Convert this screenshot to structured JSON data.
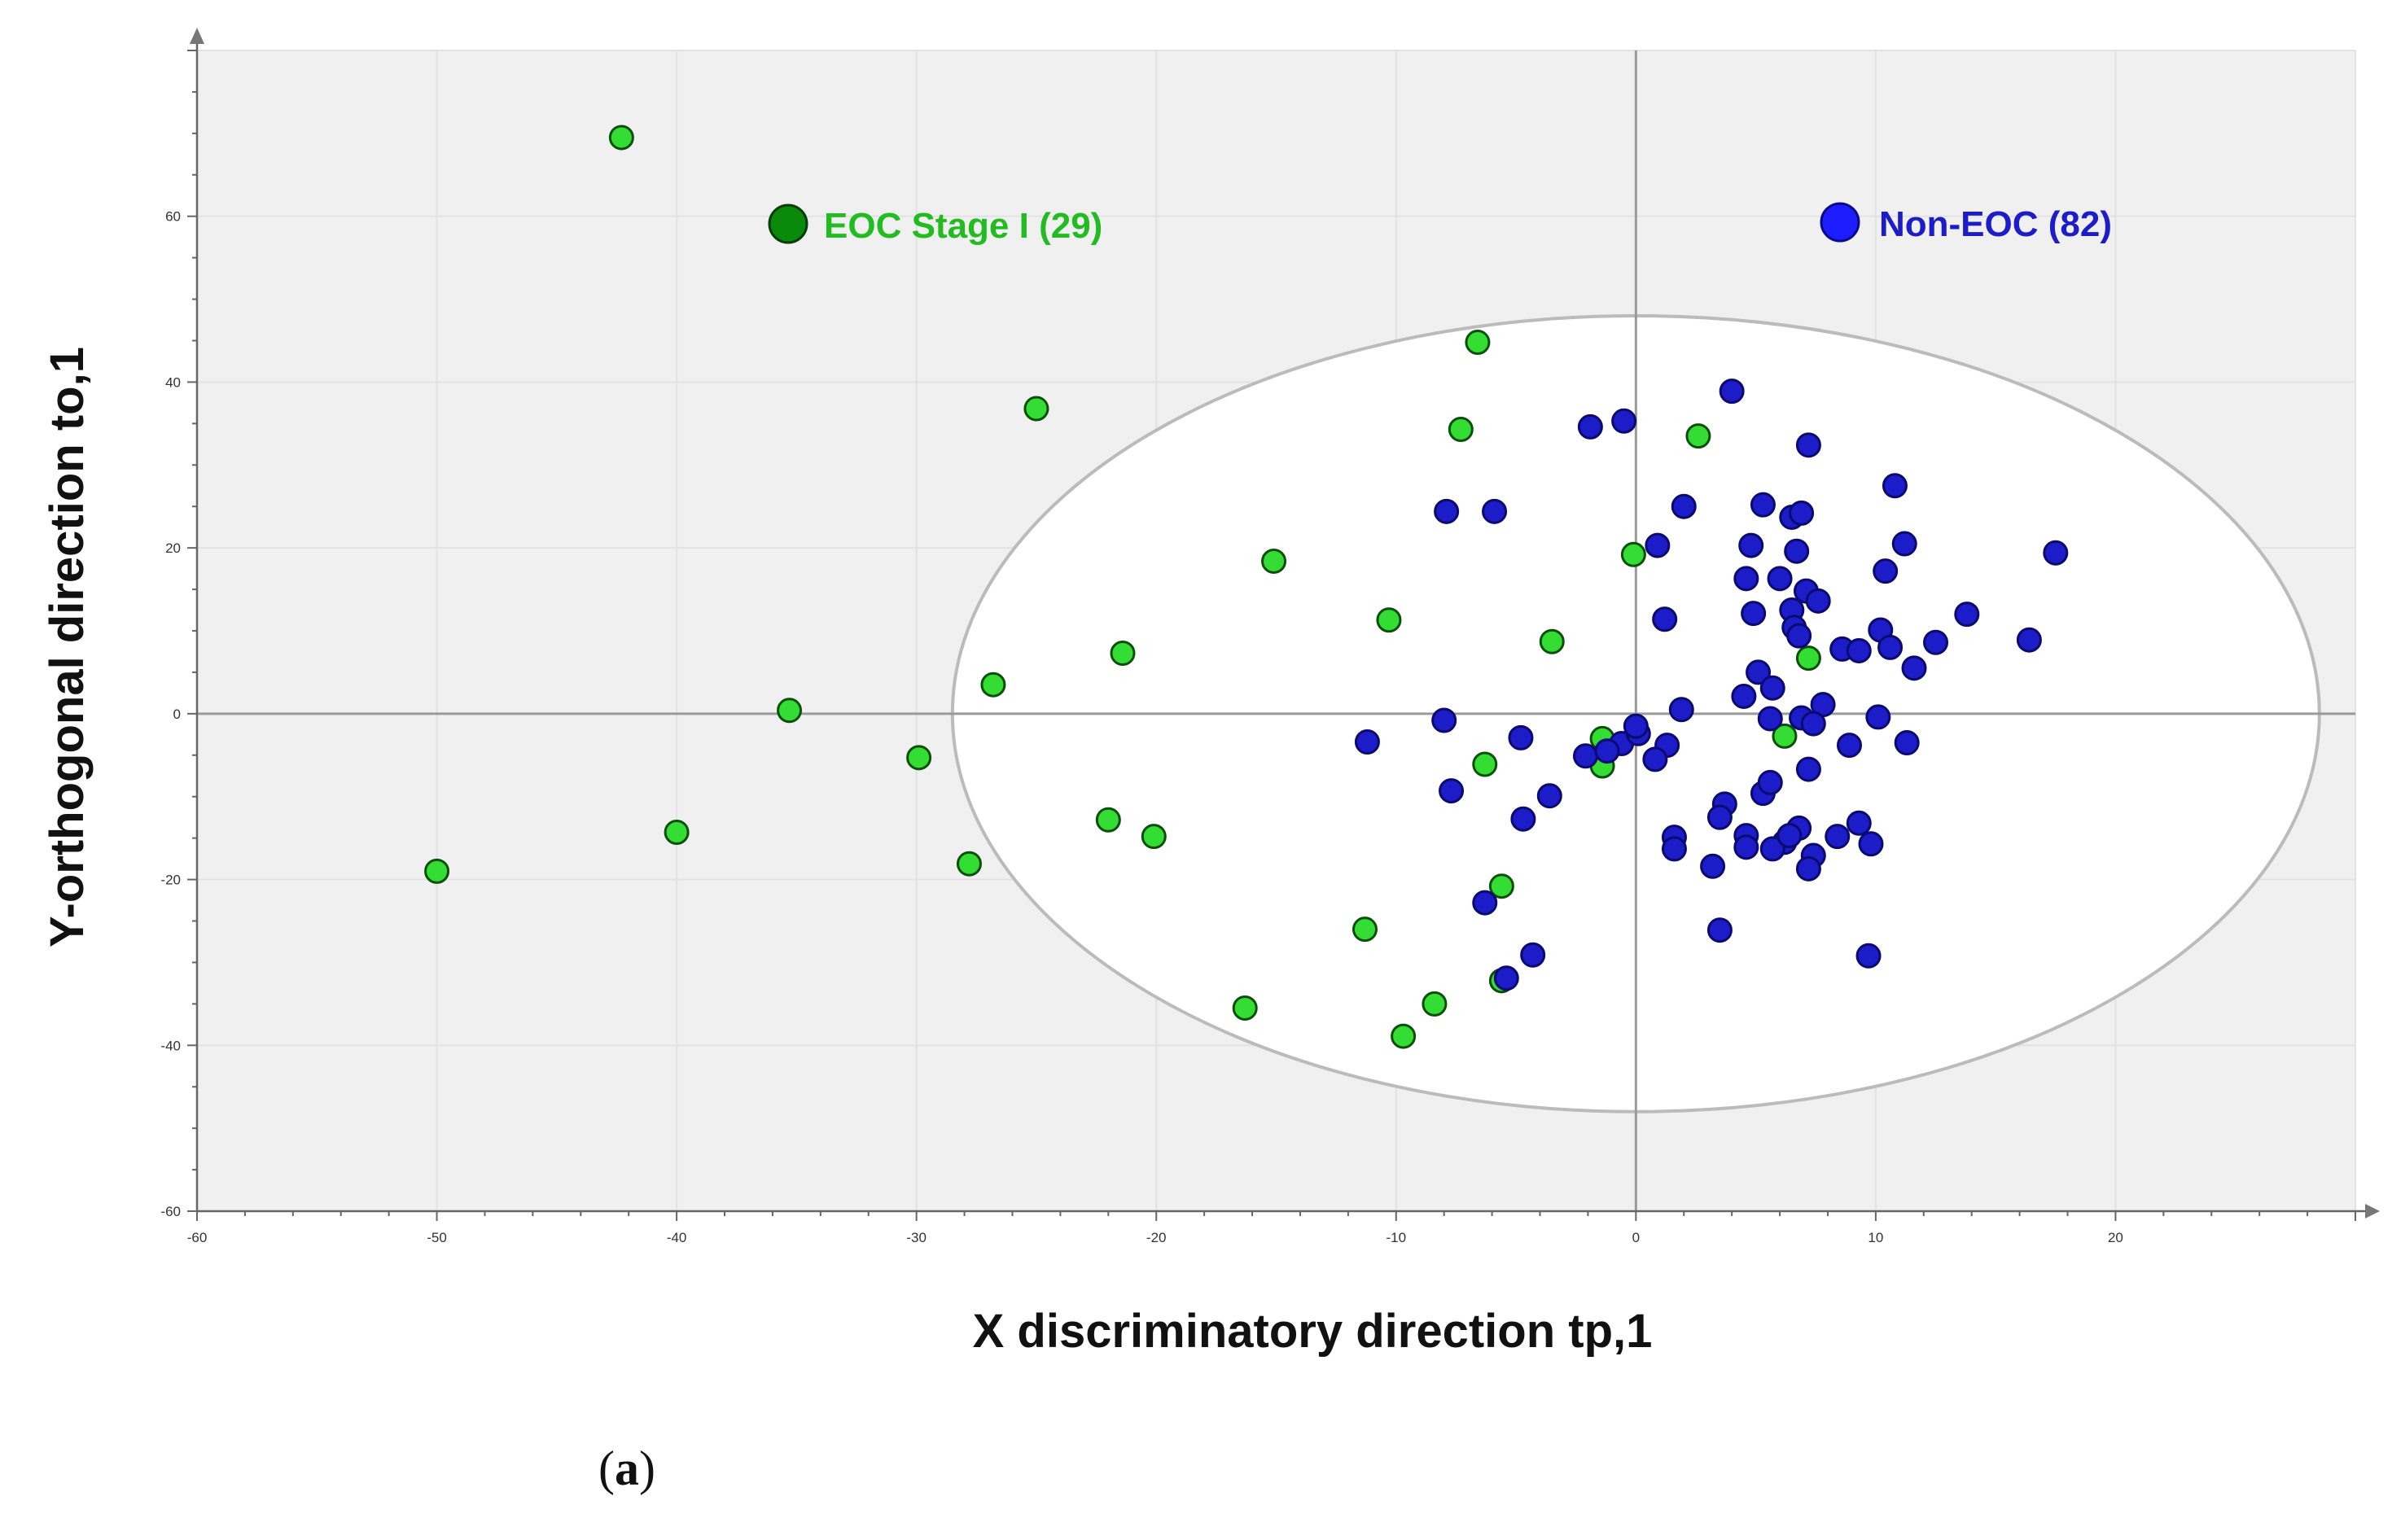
{
  "chart_data": {
    "type": "scatter",
    "title": "",
    "xlabel": "X discriminatory  direction tp,1",
    "ylabel": "Y-orthogonal direction to,1",
    "xlim": [
      -60,
      30
    ],
    "ylim": [
      -60,
      80
    ],
    "x_ticks": [
      -60,
      -50,
      -40,
      -30,
      -20,
      -10,
      0,
      10,
      20
    ],
    "y_ticks": [
      -60,
      -40,
      -20,
      0,
      20,
      40,
      60
    ],
    "grid": true,
    "legend_position": "top",
    "ellipse": {
      "center": [
        0,
        0
      ],
      "x_radius": 28.5,
      "y_radius": 48
    },
    "series": [
      {
        "name": "EOC  Stage I (29)",
        "color": "#33dd33",
        "legend_color": "#0a8a0a",
        "points": [
          [
            -42.3,
            69.5
          ],
          [
            -25,
            36.8
          ],
          [
            -6.6,
            44.8
          ],
          [
            -7.3,
            34.3
          ],
          [
            2.6,
            33.5
          ],
          [
            -15.1,
            18.4
          ],
          [
            -10.3,
            11.3
          ],
          [
            -21.4,
            7.3
          ],
          [
            -3.5,
            8.7
          ],
          [
            -0.1,
            19.2
          ],
          [
            -35.3,
            0.4
          ],
          [
            -26.8,
            3.5
          ],
          [
            -29.9,
            -5.3
          ],
          [
            -40,
            -14.3
          ],
          [
            -50,
            -19
          ],
          [
            -27.8,
            -18.1
          ],
          [
            -22,
            -12.8
          ],
          [
            -20.1,
            -14.8
          ],
          [
            -6.3,
            -6.1
          ],
          [
            -1.4,
            -3
          ],
          [
            -1.4,
            -6.3
          ],
          [
            7.2,
            6.7
          ],
          [
            6.2,
            -2.7
          ],
          [
            -5.6,
            -20.8
          ],
          [
            -11.3,
            -26
          ],
          [
            -5.6,
            -32.2
          ],
          [
            -16.3,
            -35.5
          ],
          [
            -8.4,
            -35
          ],
          [
            -9.7,
            -38.9
          ]
        ]
      },
      {
        "name": "Non-EOC  (82)",
        "color": "#1c1cc8",
        "legend_color": "#1c1cff",
        "points": [
          [
            4.0,
            38.9
          ],
          [
            -0.5,
            35.3
          ],
          [
            -1.9,
            34.6
          ],
          [
            7.2,
            32.4
          ],
          [
            10.8,
            27.5
          ],
          [
            2.0,
            25
          ],
          [
            5.3,
            25.2
          ],
          [
            6.5,
            23.7
          ],
          [
            6.9,
            24.2
          ],
          [
            -7.9,
            24.4
          ],
          [
            -5.9,
            24.4
          ],
          [
            0.9,
            20.3
          ],
          [
            4.8,
            20.3
          ],
          [
            6.7,
            19.6
          ],
          [
            11.2,
            20.5
          ],
          [
            17.5,
            19.4
          ],
          [
            4.6,
            16.3
          ],
          [
            6.0,
            16.3
          ],
          [
            7.1,
            14.8
          ],
          [
            7.6,
            13.6
          ],
          [
            10.4,
            17.2
          ],
          [
            6.5,
            12.5
          ],
          [
            4.9,
            12.1
          ],
          [
            1.2,
            11.4
          ],
          [
            6.6,
            10.4
          ],
          [
            6.8,
            9.4
          ],
          [
            8.6,
            7.8
          ],
          [
            9.3,
            7.6
          ],
          [
            10.2,
            10.1
          ],
          [
            10.6,
            8.0
          ],
          [
            12.5,
            8.6
          ],
          [
            13.8,
            12.0
          ],
          [
            16.4,
            8.9
          ],
          [
            11.6,
            5.5
          ],
          [
            5.1,
            5.0
          ],
          [
            5.7,
            3.1
          ],
          [
            4.5,
            2.1
          ],
          [
            7.8,
            1.1
          ],
          [
            5.6,
            -0.6
          ],
          [
            6.9,
            -0.5
          ],
          [
            7.4,
            -1.2
          ],
          [
            10.1,
            -0.4
          ],
          [
            1.9,
            0.5
          ],
          [
            -8.0,
            -0.8
          ],
          [
            -11.2,
            -3.4
          ],
          [
            -4.8,
            -2.9
          ],
          [
            -2.1,
            -5.1
          ],
          [
            -0.6,
            -3.6
          ],
          [
            0.1,
            -2.4
          ],
          [
            1.3,
            -3.8
          ],
          [
            0.8,
            -5.5
          ],
          [
            7.2,
            -6.7
          ],
          [
            8.9,
            -3.8
          ],
          [
            11.3,
            -3.5
          ],
          [
            -7.7,
            -9.3
          ],
          [
            -3.6,
            -9.9
          ],
          [
            -4.7,
            -12.7
          ],
          [
            5.3,
            -9.6
          ],
          [
            5.6,
            -8.3
          ],
          [
            3.7,
            -10.9
          ],
          [
            3.5,
            -12.5
          ],
          [
            4.6,
            -14.7
          ],
          [
            1.6,
            -14.9
          ],
          [
            6.2,
            -15.5
          ],
          [
            6.8,
            -13.8
          ],
          [
            5.7,
            -16.3
          ],
          [
            4.6,
            -16.1
          ],
          [
            1.6,
            -16.3
          ],
          [
            6.4,
            -14.7
          ],
          [
            9.3,
            -13.2
          ],
          [
            8.4,
            -14.8
          ],
          [
            9.8,
            -15.7
          ],
          [
            7.4,
            -17.1
          ],
          [
            7.2,
            -18.7
          ],
          [
            3.2,
            -18.4
          ],
          [
            -6.3,
            -22.8
          ],
          [
            -4.3,
            -29.1
          ],
          [
            -5.4,
            -31.9
          ],
          [
            3.5,
            -26.1
          ],
          [
            9.7,
            -29.2
          ],
          [
            0.0,
            -1.5
          ],
          [
            -1.2,
            -4.5
          ]
        ]
      }
    ],
    "caption_label": "a"
  }
}
